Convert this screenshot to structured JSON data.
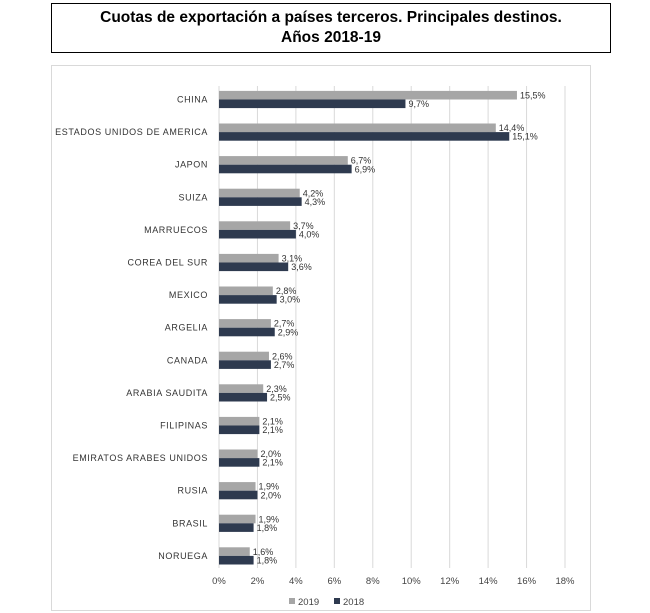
{
  "header": {
    "title_line1": "Cuotas de exportación a países terceros. Principales destinos.",
    "title_line2": "Años 2018-19"
  },
  "chart_data": {
    "type": "bar",
    "orientation": "horizontal",
    "categories": [
      "CHINA",
      "ESTADOS UNIDOS DE AMERICA",
      "JAPON",
      "SUIZA",
      "MARRUECOS",
      "COREA DEL SUR",
      "MEXICO",
      "ARGELIA",
      "CANADA",
      "ARABIA SAUDITA",
      "FILIPINAS",
      "EMIRATOS ARABES UNIDOS",
      "RUSIA",
      "BRASIL",
      "NORUEGA"
    ],
    "series": [
      {
        "name": "2019",
        "color": "#a6a6a6",
        "values": [
          15.5,
          14.4,
          6.7,
          4.2,
          3.7,
          3.1,
          2.8,
          2.7,
          2.6,
          2.3,
          2.1,
          2.0,
          1.9,
          1.9,
          1.6
        ],
        "labels": [
          "15,5%",
          "14,4%",
          "6,7%",
          "4,2%",
          "3,7%",
          "3,1%",
          "2,8%",
          "2,7%",
          "2,6%",
          "2,3%",
          "2,1%",
          "2,0%",
          "1,9%",
          "1,9%",
          "1,6%"
        ]
      },
      {
        "name": "2018",
        "color": "#2e3a4f",
        "values": [
          9.7,
          15.1,
          6.9,
          4.3,
          4.0,
          3.6,
          3.0,
          2.9,
          2.7,
          2.5,
          2.1,
          2.1,
          2.0,
          1.8,
          1.8
        ],
        "labels": [
          "9,7%",
          "15,1%",
          "6,9%",
          "4,3%",
          "4,0%",
          "3,6%",
          "3,0%",
          "2,9%",
          "2,7%",
          "2,5%",
          "2,1%",
          "2,1%",
          "2,0%",
          "1,8%",
          "1,8%"
        ]
      }
    ],
    "xlim": [
      0,
      18
    ],
    "xticks": [
      "0%",
      "2%",
      "4%",
      "6%",
      "8%",
      "10%",
      "12%",
      "14%",
      "16%",
      "18%"
    ],
    "grid": "vertical",
    "legend_position": "bottom",
    "legend_order": [
      "2019",
      "2018"
    ]
  }
}
